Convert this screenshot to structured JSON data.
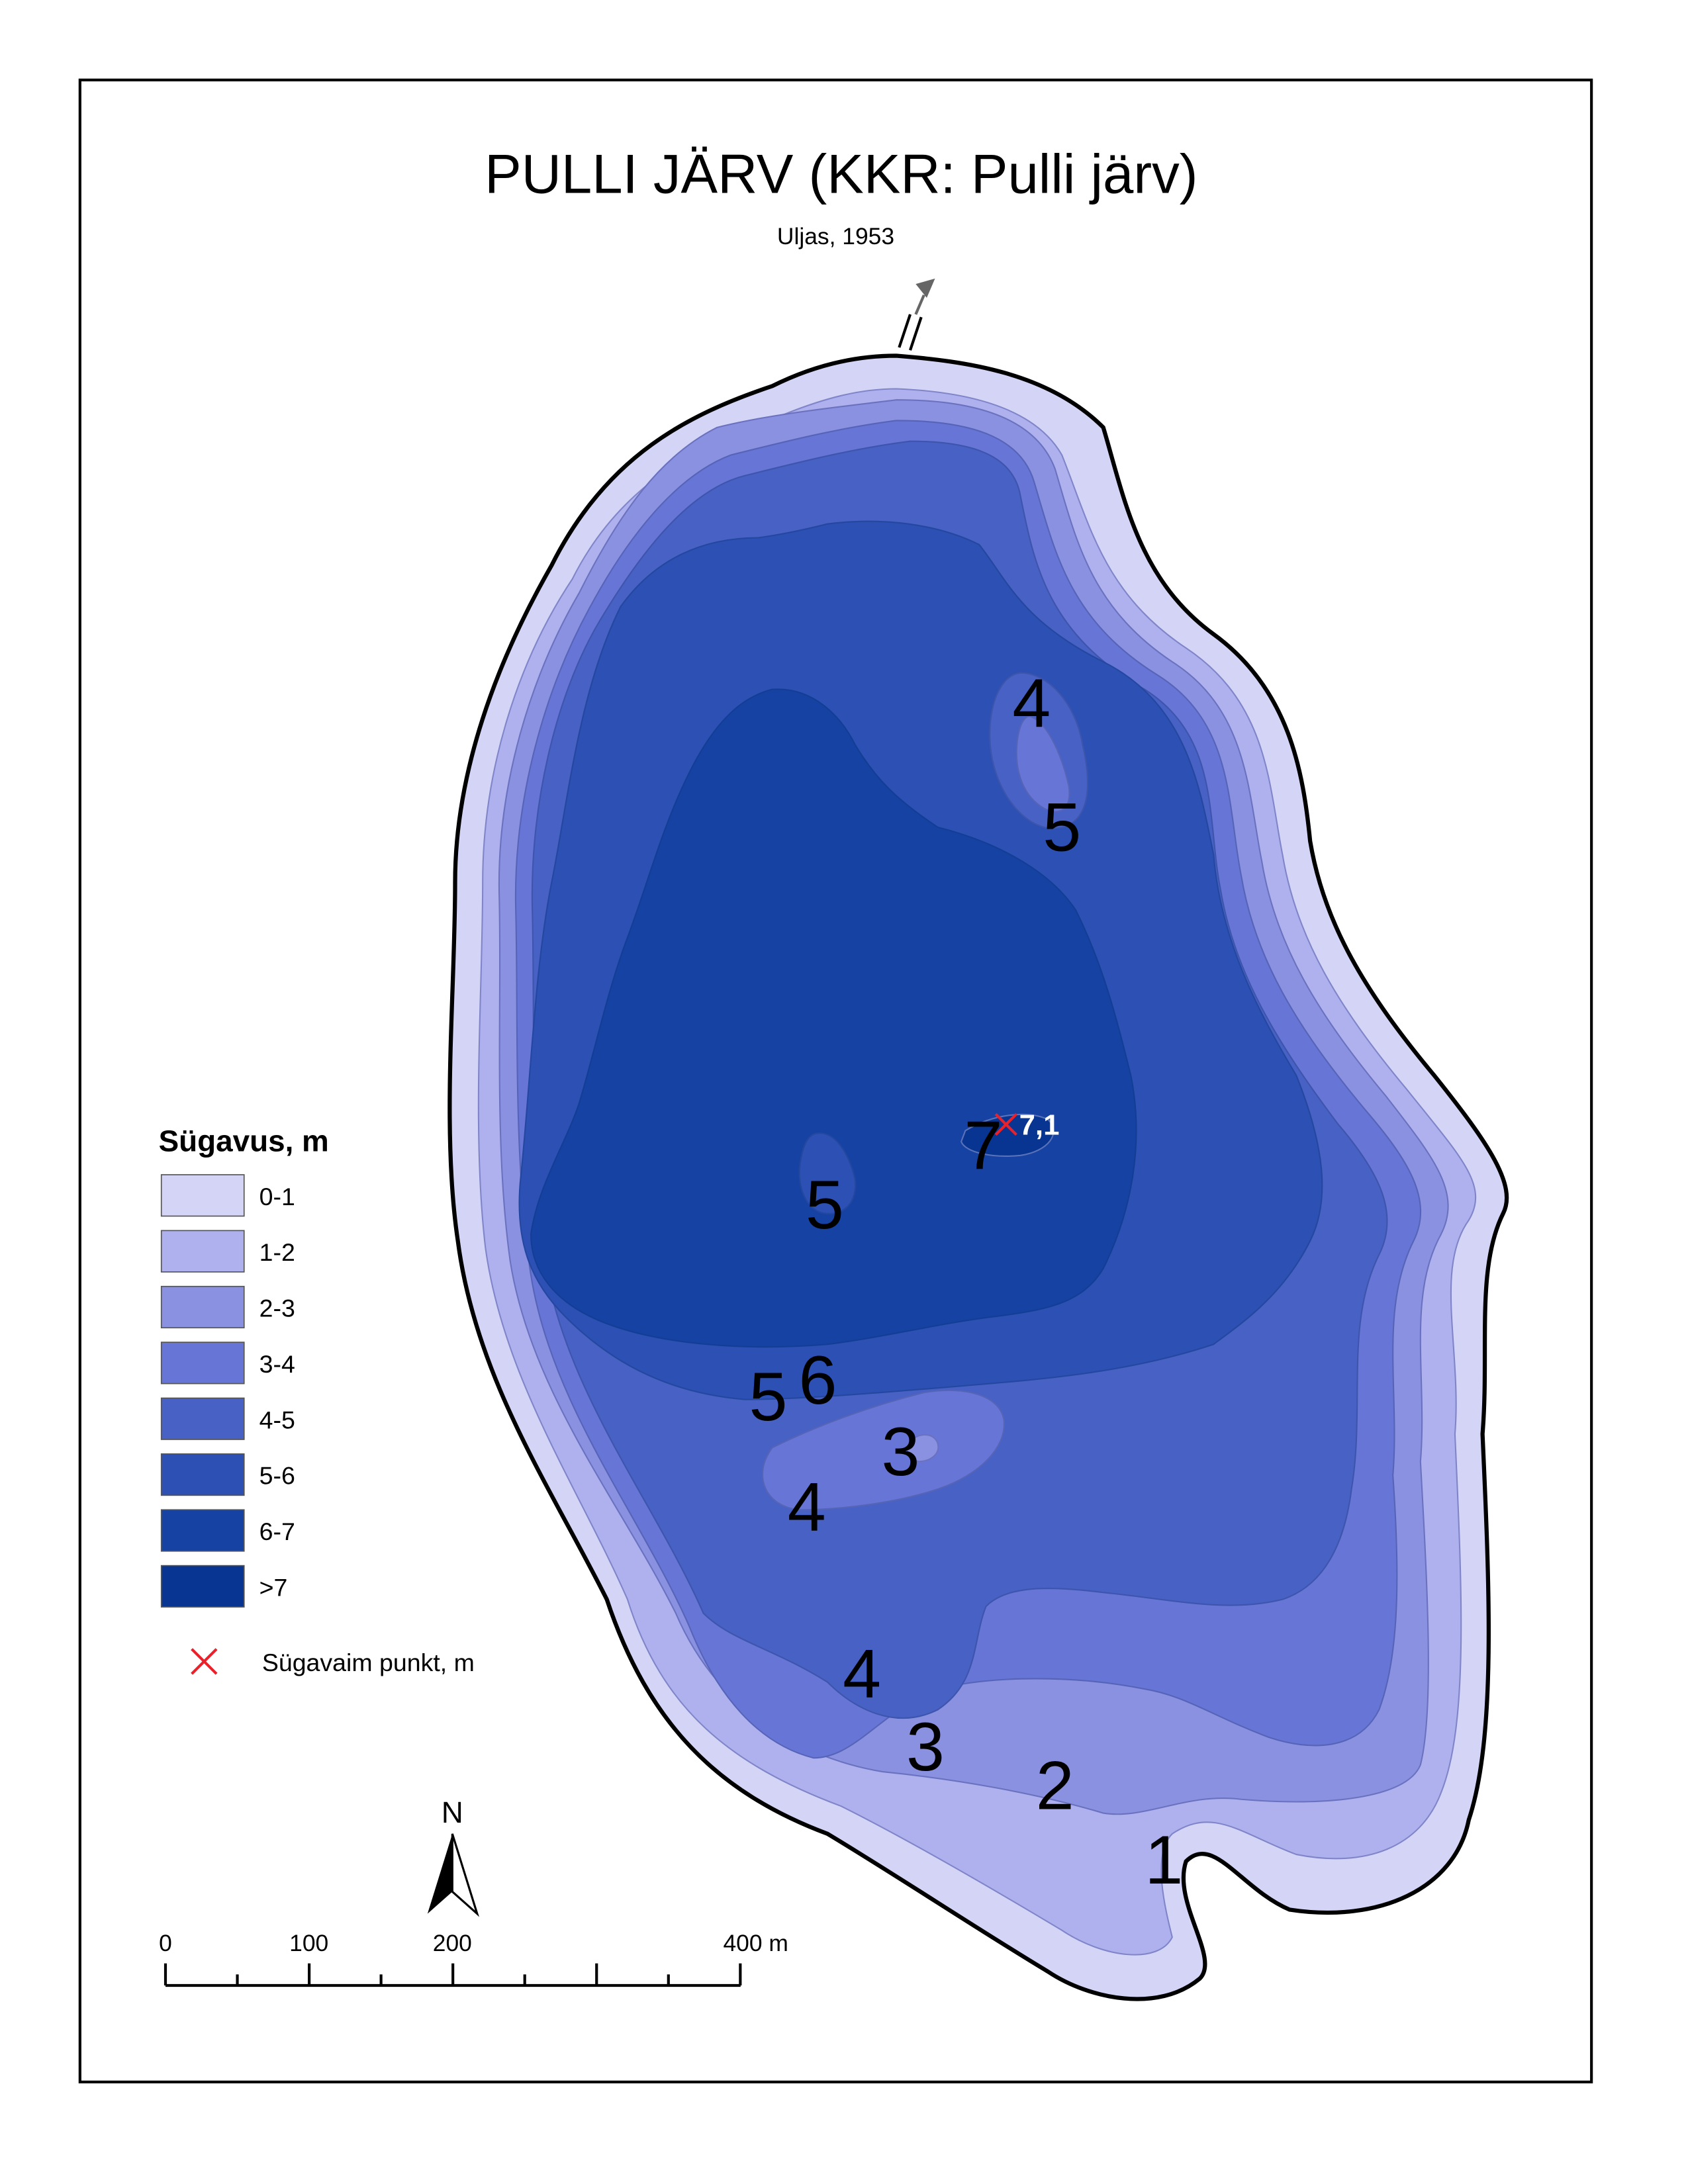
{
  "map": {
    "title": "PULLI JÄRV (KKR: Pulli järv)",
    "subtitle": "Uljas, 1953",
    "depth_contour_labels": [
      "4",
      "5",
      "7",
      "5",
      "5",
      "6",
      "3",
      "4",
      "4",
      "3",
      "2",
      "1"
    ],
    "deepest_point": {
      "value": "7,1",
      "marker": "x-marker-icon",
      "color": "#e8212b"
    }
  },
  "legend": {
    "title": "Sügavus, m",
    "classes": [
      {
        "label": "0-1",
        "color": "#d4d4f6"
      },
      {
        "label": "1-2",
        "color": "#aeb1ee"
      },
      {
        "label": "2-3",
        "color": "#8991e0"
      },
      {
        "label": "3-4",
        "color": "#6775d6"
      },
      {
        "label": "4-5",
        "color": "#4761c4"
      },
      {
        "label": "5-6",
        "color": "#2c50b3"
      },
      {
        "label": "6-7",
        "color": "#1643a3"
      },
      {
        "label": ">7",
        "color": "#073591"
      }
    ],
    "deepest_point_label": "Sügavaim punkt, m"
  },
  "north_arrow": {
    "label": "N",
    "icon": "north-arrow-icon"
  },
  "scale_bar": {
    "tick_labels": [
      "0",
      "100",
      "200",
      "400 m"
    ]
  },
  "outflow": {
    "icon": "outflow-arrow-icon"
  }
}
